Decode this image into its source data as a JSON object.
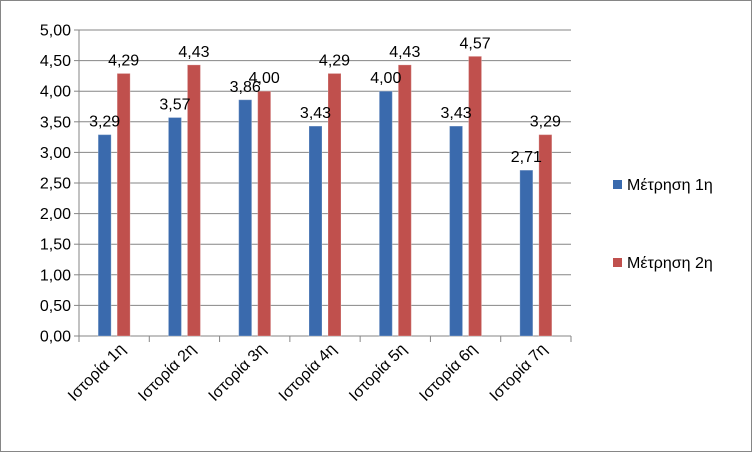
{
  "chart_data": {
    "type": "bar",
    "categories": [
      "Ιστορία 1η",
      "Ιστορία 2η",
      "Ιστορία 3η",
      "Ιστορία 4η",
      "Ιστορία 5η",
      "Ιστορία 6η",
      "Ιστορία 7η"
    ],
    "series": [
      {
        "name": "Μέτρηση 1η",
        "color": "#3A6AAD",
        "values": [
          3.29,
          3.57,
          3.86,
          3.43,
          4.0,
          3.43,
          2.71
        ],
        "labels": [
          "3,29",
          "3,57",
          "3,86",
          "3,43",
          "4,00",
          "3,43",
          "2,71"
        ]
      },
      {
        "name": "Μέτρηση 2η",
        "color": "#C0504D",
        "values": [
          4.29,
          4.43,
          4.0,
          4.29,
          4.43,
          4.57,
          3.29
        ],
        "labels": [
          "4,29",
          "4,43",
          "4,00",
          "4,29",
          "4,43",
          "4,57",
          "3,29"
        ]
      }
    ],
    "ylim": [
      0,
      5
    ],
    "y_ticks": [
      "0,00",
      "0,50",
      "1,00",
      "1,50",
      "2,00",
      "2,50",
      "3,00",
      "3,50",
      "4,00",
      "4,50",
      "5,00"
    ],
    "gridlines": true,
    "legend": "right",
    "title": "",
    "xlabel": "",
    "ylabel": ""
  }
}
